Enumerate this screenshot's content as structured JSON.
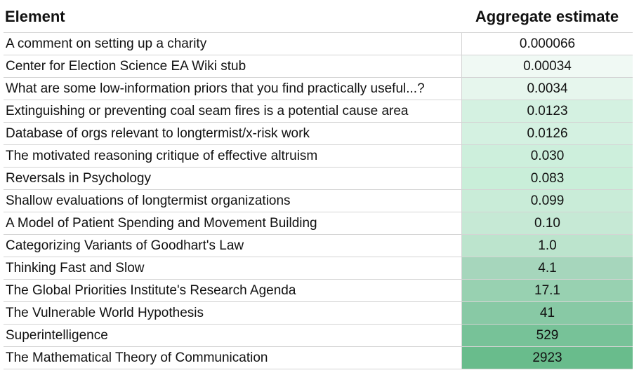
{
  "header": {
    "element": "Element",
    "estimate": "Aggregate estimate"
  },
  "rows": [
    {
      "element": "A comment on setting up a charity",
      "estimate": "0.000066",
      "color": "#ffffff"
    },
    {
      "element": "Center for Election Science EA Wiki stub",
      "estimate": "0.00034",
      "color": "#f0f9f4"
    },
    {
      "element": "What are some low-information priors that you find practically useful...?",
      "estimate": "0.0034",
      "color": "#e6f6ed"
    },
    {
      "element": "Extinguishing or preventing coal seam fires is a potential cause area",
      "estimate": "0.0123",
      "color": "#d4f1e1"
    },
    {
      "element": "Database of orgs relevant to longtermist/x-risk work",
      "estimate": "0.0126",
      "color": "#d4f1e1"
    },
    {
      "element": "The motivated reasoning critique of effective altruism",
      "estimate": "0.030",
      "color": "#cdefdc"
    },
    {
      "element": "Reversals in Psychology",
      "estimate": "0.083",
      "color": "#c9eed9"
    },
    {
      "element": "Shallow evaluations of longtermist organizations",
      "estimate": "0.099",
      "color": "#c9ecd8"
    },
    {
      "element": "A Model of Patient Spending and Movement Building",
      "estimate": "0.10",
      "color": "#c6e9d5"
    },
    {
      "element": "Categorizing Variants of Goodhart's Law",
      "estimate": "1.0",
      "color": "#bce4cd"
    },
    {
      "element": "Thinking Fast and Slow",
      "estimate": "4.1",
      "color": "#a6d6bc"
    },
    {
      "element": "The Global Priorities Institute's Research Agenda",
      "estimate": "17.1",
      "color": "#98d1b1"
    },
    {
      "element": "The Vulnerable World Hypothesis",
      "estimate": "41",
      "color": "#88c9a5"
    },
    {
      "element": "Superintelligence",
      "estimate": "529",
      "color": "#77c298"
    },
    {
      "element": "The Mathematical Theory of Communication",
      "estimate": "2923",
      "color": "#69bc8c"
    }
  ]
}
